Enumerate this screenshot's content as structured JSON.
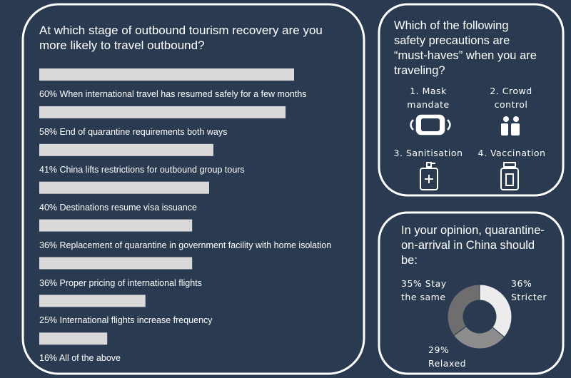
{
  "chart_data": [
    {
      "type": "barh",
      "title": "At which stage of outbound tourism recovery are you more likely to travel outbound?",
      "categories": [
        "When international travel has resumed safely for a few months",
        "End of quarantine requirements both ways",
        "China lifts restrictions for outbound group tours",
        "Destinations resume visa issuance",
        "Replacement of quarantine in government facility with home isolation",
        "Proper pricing of international flights",
        "International flights increase frequency",
        "All of the above"
      ],
      "values": [
        60,
        58,
        41,
        40,
        36,
        36,
        25,
        16
      ],
      "value_labels": [
        "60%",
        "58%",
        "41%",
        "40%",
        "36%",
        "36%",
        "25%",
        "16%"
      ],
      "color": "#d9d9d9",
      "xlim": [
        0,
        100
      ]
    },
    {
      "type": "donut",
      "title": "In your opinion, quarantine-on-arrival in China should be:",
      "categories": [
        "Stricter",
        "Relaxed",
        "Stay the same"
      ],
      "values": [
        36,
        29,
        35
      ],
      "value_labels": [
        "36%",
        "29%",
        "35%"
      ],
      "colors": [
        "#ececec",
        "#8c8c8c",
        "#6e6e6e"
      ]
    }
  ],
  "safety_panel": {
    "title": "Which of the following safety precautions are “must-haves” when you are traveling?",
    "items": [
      "1. Mask mandate",
      "2. Crowd control",
      "3. Sanitisation",
      "4. Vaccination"
    ]
  }
}
